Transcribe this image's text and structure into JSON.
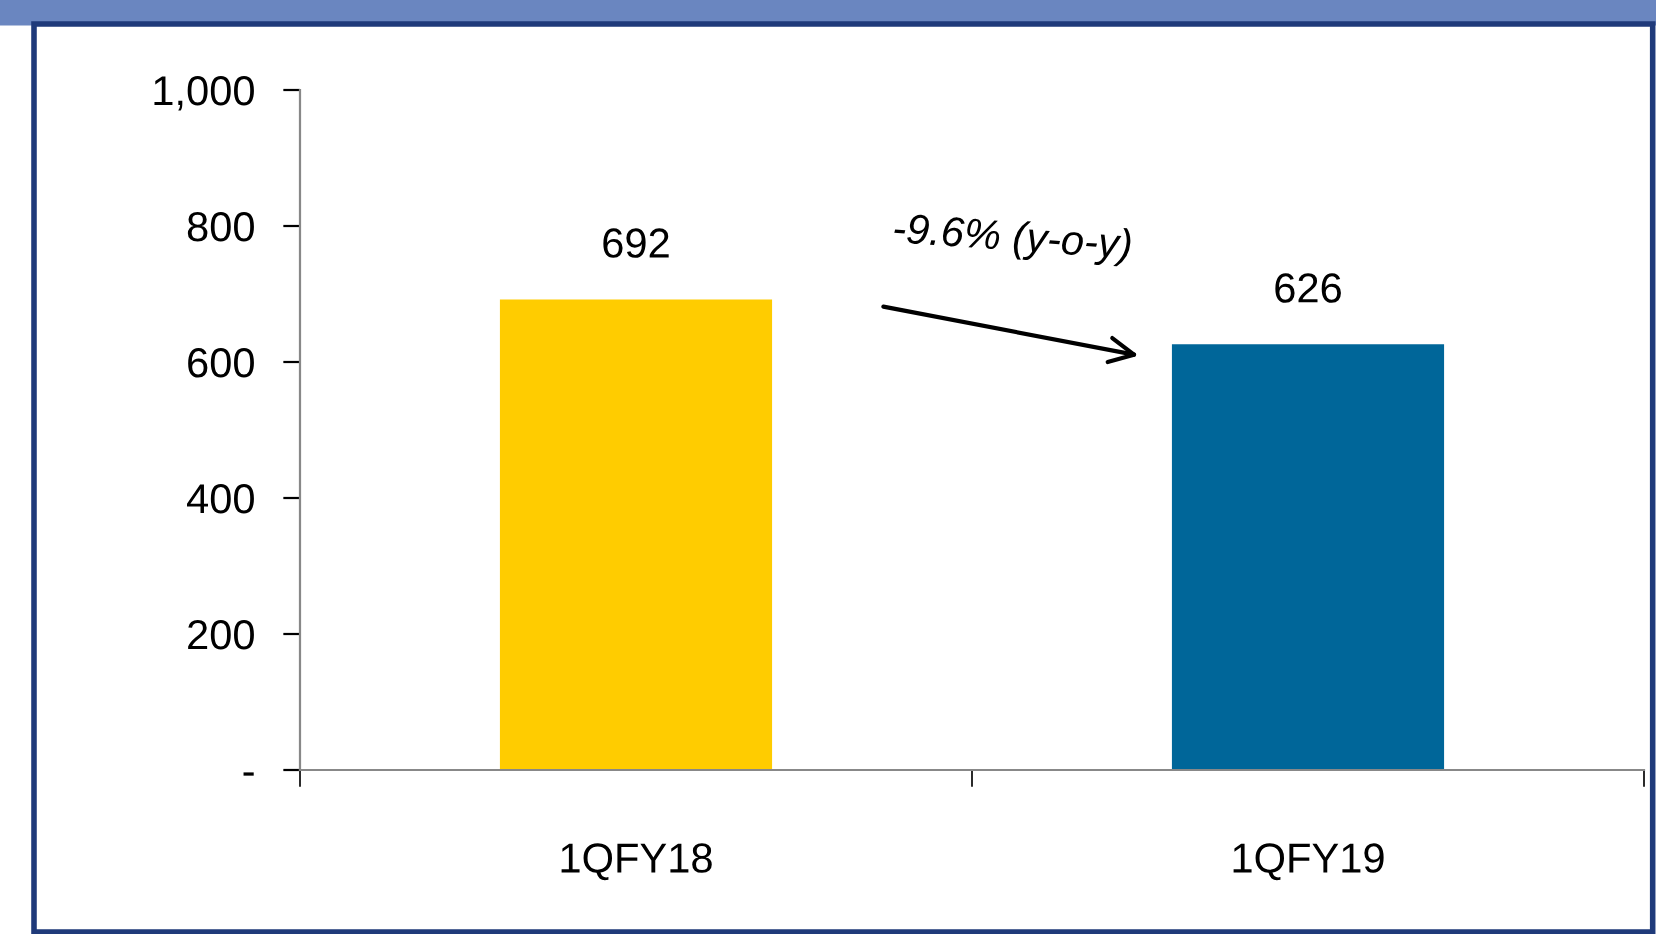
{
  "chart_data": {
    "type": "bar",
    "categories": [
      "1QFY18",
      "1QFY19"
    ],
    "values": [
      692,
      626
    ],
    "colors": [
      "#ffcc00",
      "#006699"
    ],
    "ylim": [
      0,
      1000
    ],
    "yticks": [
      {
        "value": 0,
        "label": "-"
      },
      200,
      400,
      600,
      800,
      {
        "value": 1000,
        "label": "1,000"
      }
    ],
    "data_labels": true,
    "grid": false,
    "legend": false,
    "annotations": [
      "-9.6% (y-o-y)"
    ]
  }
}
